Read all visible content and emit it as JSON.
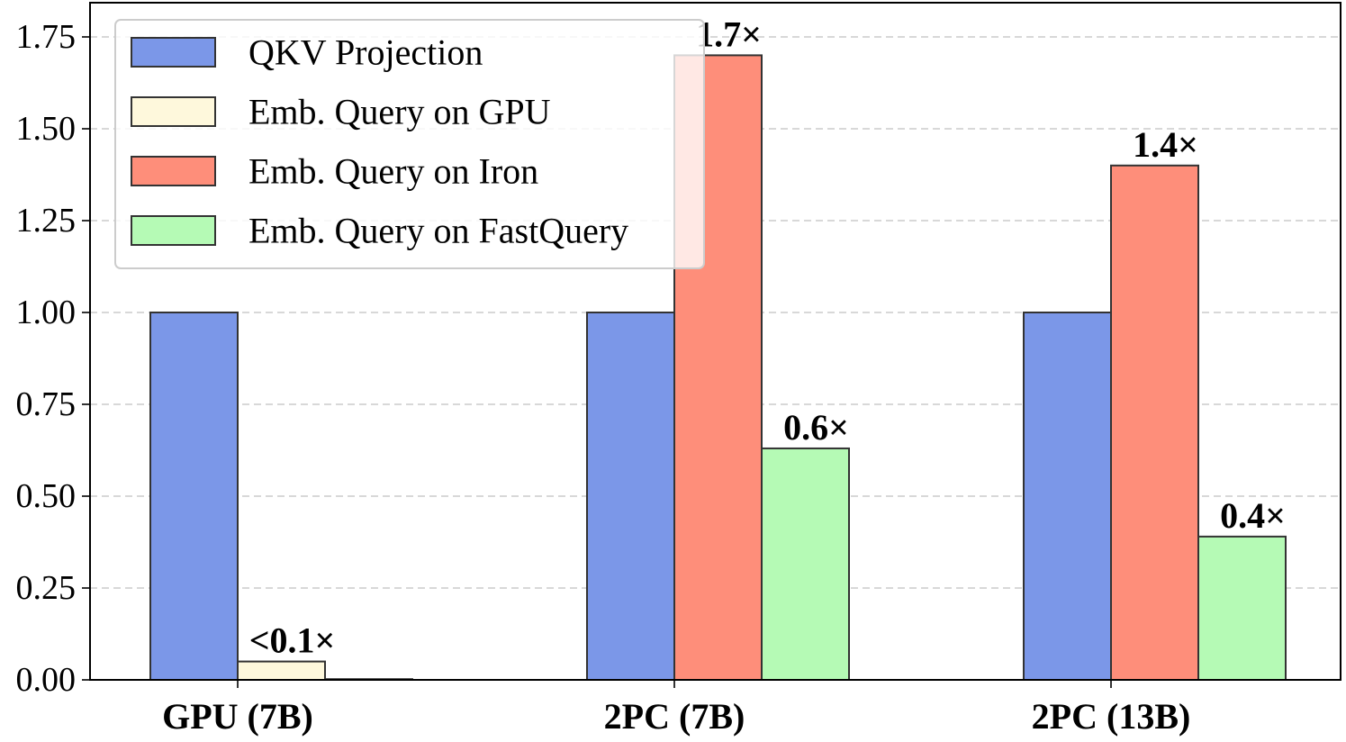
{
  "chart_data": {
    "type": "bar",
    "categories": [
      "GPU (7B)",
      "2PC (7B)",
      "2PC (13B)"
    ],
    "series": [
      {
        "name": "QKV Projection",
        "color": "#7b97e8",
        "values": [
          1.0,
          1.0,
          1.0
        ]
      },
      {
        "name": "Emb. Query on GPU",
        "color": "#fef8dc",
        "values": [
          0.05,
          null,
          null
        ]
      },
      {
        "name": "Emb. Query on Iron",
        "color": "#fe8e7a",
        "values": [
          null,
          1.7,
          1.4
        ]
      },
      {
        "name": "Emb. Query on FastQuery",
        "color": "#b5fab5",
        "values": [
          0.002,
          0.63,
          0.39
        ]
      }
    ],
    "data_labels": [
      {
        "text": "<0.1×",
        "category": 0,
        "series": 1
      },
      {
        "text": "1.7×",
        "category": 1,
        "series": 2
      },
      {
        "text": "0.6×",
        "category": 1,
        "series": 3
      },
      {
        "text": "1.4×",
        "category": 2,
        "series": 2
      },
      {
        "text": "0.4×",
        "category": 2,
        "series": 3
      }
    ],
    "y_ticks": [
      "0.00",
      "0.25",
      "0.50",
      "0.75",
      "1.00",
      "1.25",
      "1.50",
      "1.75"
    ],
    "ylim": [
      0,
      1.75
    ],
    "grid": true,
    "legend_position": "top-left",
    "xlabel": "",
    "ylabel": ""
  }
}
